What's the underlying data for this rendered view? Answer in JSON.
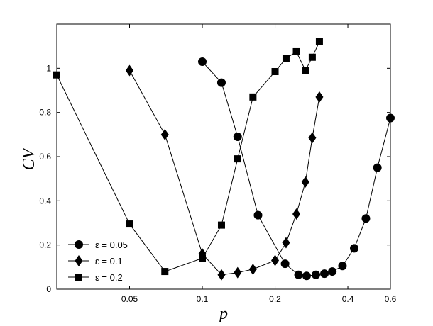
{
  "chart_data": {
    "type": "line",
    "title": "",
    "xlabel": "p",
    "ylabel": "CV",
    "x_scale": "log",
    "x_ticks": [
      0.05,
      0.1,
      0.2,
      0.4,
      0.6
    ],
    "x_tick_labels": [
      "0.05",
      "0.1",
      "0.2",
      "0.4",
      "0.6"
    ],
    "y_ticks": [
      0,
      0.2,
      0.4,
      0.6,
      0.8,
      1
    ],
    "y_tick_labels": [
      "0",
      "0.2",
      "0.4",
      "0.6",
      "0.8",
      "1"
    ],
    "xlim": [
      0.025,
      0.6
    ],
    "ylim": [
      0,
      1.2
    ],
    "grid": false,
    "legend_position": "bottom-left",
    "series": [
      {
        "name": "ε = 0.05",
        "marker": "circle",
        "x": [
          0.1,
          0.12,
          0.14,
          0.17,
          0.22,
          0.25,
          0.27,
          0.295,
          0.32,
          0.345,
          0.38,
          0.425,
          0.475,
          0.53,
          0.6
        ],
        "y": [
          1.03,
          0.935,
          0.69,
          0.335,
          0.115,
          0.065,
          0.06,
          0.065,
          0.07,
          0.08,
          0.105,
          0.185,
          0.32,
          0.55,
          0.775
        ]
      },
      {
        "name": "ε = 0.1",
        "marker": "diamond",
        "x": [
          0.05,
          0.07,
          0.1,
          0.12,
          0.14,
          0.162,
          0.2,
          0.222,
          0.245,
          0.267,
          0.285,
          0.305
        ],
        "y": [
          0.99,
          0.7,
          0.16,
          0.065,
          0.075,
          0.09,
          0.13,
          0.21,
          0.34,
          0.485,
          0.685,
          0.87
        ]
      },
      {
        "name": "ε = 0.2",
        "marker": "square",
        "x": [
          0.025,
          0.05,
          0.07,
          0.1,
          0.12,
          0.14,
          0.162,
          0.2,
          0.222,
          0.245,
          0.267,
          0.285,
          0.305
        ],
        "y": [
          0.97,
          0.295,
          0.08,
          0.14,
          0.29,
          0.59,
          0.87,
          0.985,
          1.045,
          1.075,
          0.99,
          1.05,
          1.12
        ]
      }
    ]
  }
}
